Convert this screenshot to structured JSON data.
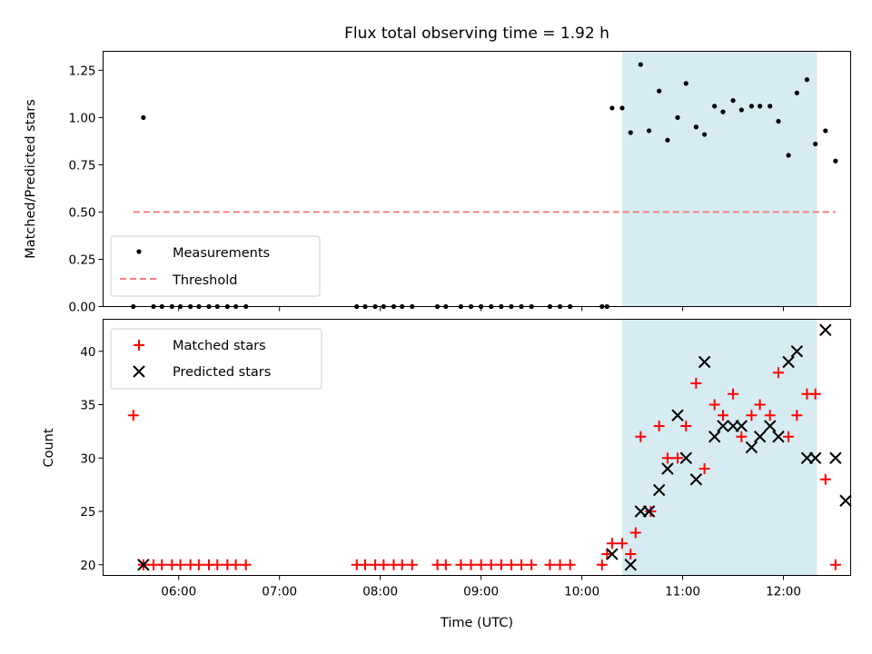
{
  "chart_data": [
    {
      "type": "scatter",
      "title": "Flux total observing time = 1.92 h",
      "xlabel": "",
      "ylabel": "Matched/Predicted stars",
      "ylim": [
        0,
        1.35
      ],
      "yticks": [
        0.0,
        0.25,
        0.5,
        0.75,
        1.0,
        1.25
      ],
      "ytick_labels": [
        "0.00",
        "0.25",
        "0.50",
        "0.75",
        "1.00",
        "1.25"
      ],
      "xlim": [
        "05:15",
        "12:40"
      ],
      "grid": false,
      "legend_position": "lower-left",
      "shaded_span": {
        "start": "10:24",
        "end": "12:20",
        "color": "#add8e6"
      },
      "series": [
        {
          "name": "Measurements",
          "color": "#000000",
          "marker": "dot",
          "points": [
            [
              "05:33",
              0
            ],
            [
              "05:39",
              1.0
            ],
            [
              "05:45",
              0
            ],
            [
              "05:50",
              0
            ],
            [
              "05:56",
              0
            ],
            [
              "06:01",
              0
            ],
            [
              "06:07",
              0
            ],
            [
              "06:12",
              0
            ],
            [
              "06:18",
              0
            ],
            [
              "06:23",
              0
            ],
            [
              "06:29",
              0
            ],
            [
              "06:34",
              0
            ],
            [
              "06:40",
              0
            ],
            [
              "07:46",
              0
            ],
            [
              "07:51",
              0
            ],
            [
              "07:57",
              0
            ],
            [
              "08:02",
              0
            ],
            [
              "08:08",
              0
            ],
            [
              "08:13",
              0
            ],
            [
              "08:19",
              0
            ],
            [
              "08:34",
              0
            ],
            [
              "08:39",
              0
            ],
            [
              "08:48",
              0
            ],
            [
              "08:54",
              0
            ],
            [
              "09:00",
              0
            ],
            [
              "09:06",
              0
            ],
            [
              "09:12",
              0
            ],
            [
              "09:18",
              0
            ],
            [
              "09:24",
              0
            ],
            [
              "09:30",
              0
            ],
            [
              "09:41",
              0
            ],
            [
              "09:47",
              0
            ],
            [
              "09:53",
              0
            ],
            [
              "10:12",
              0
            ],
            [
              "10:15",
              0
            ],
            [
              "10:18",
              1.05
            ],
            [
              "10:24",
              1.05
            ],
            [
              "10:29",
              0.92
            ],
            [
              "10:35",
              1.28
            ],
            [
              "10:40",
              0.93
            ],
            [
              "10:46",
              1.14
            ],
            [
              "10:51",
              0.88
            ],
            [
              "10:57",
              1.0
            ],
            [
              "11:02",
              1.18
            ],
            [
              "11:08",
              0.95
            ],
            [
              "11:13",
              0.91
            ],
            [
              "11:19",
              1.06
            ],
            [
              "11:24",
              1.03
            ],
            [
              "11:30",
              1.09
            ],
            [
              "11:35",
              1.04
            ],
            [
              "11:41",
              1.06
            ],
            [
              "11:46",
              1.06
            ],
            [
              "11:52",
              1.06
            ],
            [
              "11:57",
              0.98
            ],
            [
              "12:03",
              0.8
            ],
            [
              "12:08",
              1.13
            ],
            [
              "12:14",
              1.2
            ],
            [
              "12:19",
              0.86
            ],
            [
              "12:25",
              0.93
            ],
            [
              "12:31",
              0.77
            ]
          ]
        },
        {
          "name": "Threshold",
          "color": "#f08080",
          "style": "dashed",
          "points": [
            [
              "05:33",
              0.5
            ],
            [
              "12:31",
              0.5
            ]
          ]
        }
      ]
    },
    {
      "type": "scatter",
      "title": "",
      "xlabel": "Time (UTC)",
      "ylabel": "Count",
      "ylim": [
        19,
        43
      ],
      "yticks": [
        20,
        25,
        30,
        35,
        40
      ],
      "ytick_labels": [
        "20",
        "25",
        "30",
        "35",
        "40"
      ],
      "xlim": [
        "05:15",
        "12:40"
      ],
      "xticks": [
        "06:00",
        "07:00",
        "08:00",
        "09:00",
        "10:00",
        "11:00",
        "12:00"
      ],
      "grid": false,
      "legend_position": "upper-left",
      "shaded_span": {
        "start": "10:24",
        "end": "12:20",
        "color": "#add8e6"
      },
      "series": [
        {
          "name": "Matched stars",
          "color": "#ff0000",
          "marker": "plus",
          "points": [
            [
              "05:33",
              34
            ],
            [
              "05:39",
              20
            ],
            [
              "05:45",
              20
            ],
            [
              "05:50",
              20
            ],
            [
              "05:56",
              20
            ],
            [
              "06:01",
              20
            ],
            [
              "06:07",
              20
            ],
            [
              "06:12",
              20
            ],
            [
              "06:18",
              20
            ],
            [
              "06:23",
              20
            ],
            [
              "06:29",
              20
            ],
            [
              "06:34",
              20
            ],
            [
              "06:40",
              20
            ],
            [
              "07:46",
              20
            ],
            [
              "07:51",
              20
            ],
            [
              "07:57",
              20
            ],
            [
              "08:02",
              20
            ],
            [
              "08:08",
              20
            ],
            [
              "08:13",
              20
            ],
            [
              "08:19",
              20
            ],
            [
              "08:34",
              20
            ],
            [
              "08:39",
              20
            ],
            [
              "08:48",
              20
            ],
            [
              "08:54",
              20
            ],
            [
              "09:00",
              20
            ],
            [
              "09:06",
              20
            ],
            [
              "09:12",
              20
            ],
            [
              "09:18",
              20
            ],
            [
              "09:24",
              20
            ],
            [
              "09:30",
              20
            ],
            [
              "09:41",
              20
            ],
            [
              "09:47",
              20
            ],
            [
              "09:53",
              20
            ],
            [
              "10:12",
              20
            ],
            [
              "10:15",
              21
            ],
            [
              "10:18",
              22
            ],
            [
              "10:24",
              22
            ],
            [
              "10:29",
              21
            ],
            [
              "10:32",
              23
            ],
            [
              "10:35",
              32
            ],
            [
              "10:41",
              25
            ],
            [
              "10:46",
              33
            ],
            [
              "10:51",
              30
            ],
            [
              "10:57",
              30
            ],
            [
              "11:02",
              33
            ],
            [
              "11:08",
              37
            ],
            [
              "11:13",
              29
            ],
            [
              "11:19",
              35
            ],
            [
              "11:24",
              34
            ],
            [
              "11:30",
              36
            ],
            [
              "11:35",
              32
            ],
            [
              "11:41",
              34
            ],
            [
              "11:46",
              35
            ],
            [
              "11:52",
              34
            ],
            [
              "11:57",
              38
            ],
            [
              "12:03",
              32
            ],
            [
              "12:08",
              34
            ],
            [
              "12:14",
              36
            ],
            [
              "12:19",
              36
            ],
            [
              "12:25",
              28
            ],
            [
              "12:31",
              20
            ]
          ]
        },
        {
          "name": "Predicted stars",
          "color": "#000000",
          "marker": "x",
          "points": [
            [
              "05:39",
              20
            ],
            [
              "10:18",
              21
            ],
            [
              "10:29",
              20
            ],
            [
              "10:35",
              25
            ],
            [
              "10:40",
              25
            ],
            [
              "10:46",
              27
            ],
            [
              "10:51",
              29
            ],
            [
              "10:57",
              34
            ],
            [
              "11:02",
              30
            ],
            [
              "11:08",
              28
            ],
            [
              "11:13",
              39
            ],
            [
              "11:19",
              32
            ],
            [
              "11:24",
              33
            ],
            [
              "11:30",
              33
            ],
            [
              "11:35",
              33
            ],
            [
              "11:41",
              31
            ],
            [
              "11:46",
              32
            ],
            [
              "11:52",
              33
            ],
            [
              "11:57",
              32
            ],
            [
              "12:03",
              39
            ],
            [
              "12:08",
              40
            ],
            [
              "12:14",
              30
            ],
            [
              "12:19",
              30
            ],
            [
              "12:25",
              42
            ],
            [
              "12:31",
              30
            ],
            [
              "12:37",
              26
            ]
          ]
        }
      ]
    }
  ]
}
